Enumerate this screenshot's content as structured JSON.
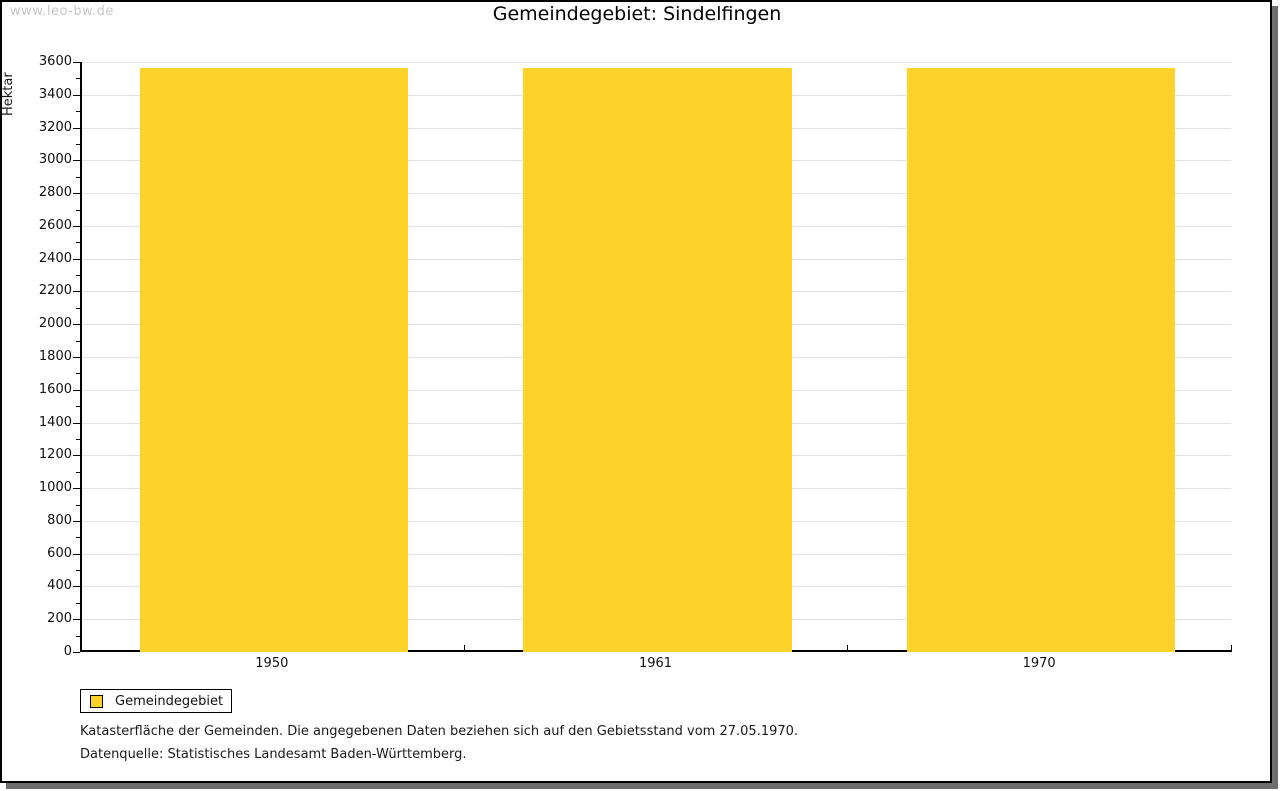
{
  "watermark": "www.leo-bw.de",
  "title": "Gemeindegebiet: Sindelfingen",
  "legend": {
    "label": "Gemeindegebiet"
  },
  "footnotes": {
    "line1": "Katasterfläche der Gemeinden. Die angegebenen Daten beziehen sich auf den Gebietsstand vom 27.05.1970.",
    "line2": "Datenquelle: Statistisches Landesamt Baden-Württemberg."
  },
  "colors": {
    "bar": "#FDD32B",
    "gridline": "#E3E3E3",
    "frame_shadow": "#6E6E6E",
    "watermark": "#C8C8C8"
  },
  "chart_data": {
    "type": "bar",
    "title": "Gemeindegebiet: Sindelfingen",
    "categories": [
      "1950",
      "1961",
      "1970"
    ],
    "series": [
      {
        "name": "Gemeindegebiet",
        "values": [
          3563,
          3563,
          3563
        ],
        "color": "#FDD32B"
      }
    ],
    "xlabel": "",
    "ylabel": "Hektar",
    "ylim": [
      0,
      3600
    ],
    "y_major_ticks": [
      0,
      200,
      400,
      600,
      800,
      1000,
      1200,
      1400,
      1600,
      1800,
      2000,
      2200,
      2400,
      2600,
      2800,
      3000,
      3200,
      3400,
      3600
    ],
    "y_minor_step": 100,
    "grid": "horizontal-major",
    "legend_position": "bottom-left"
  }
}
